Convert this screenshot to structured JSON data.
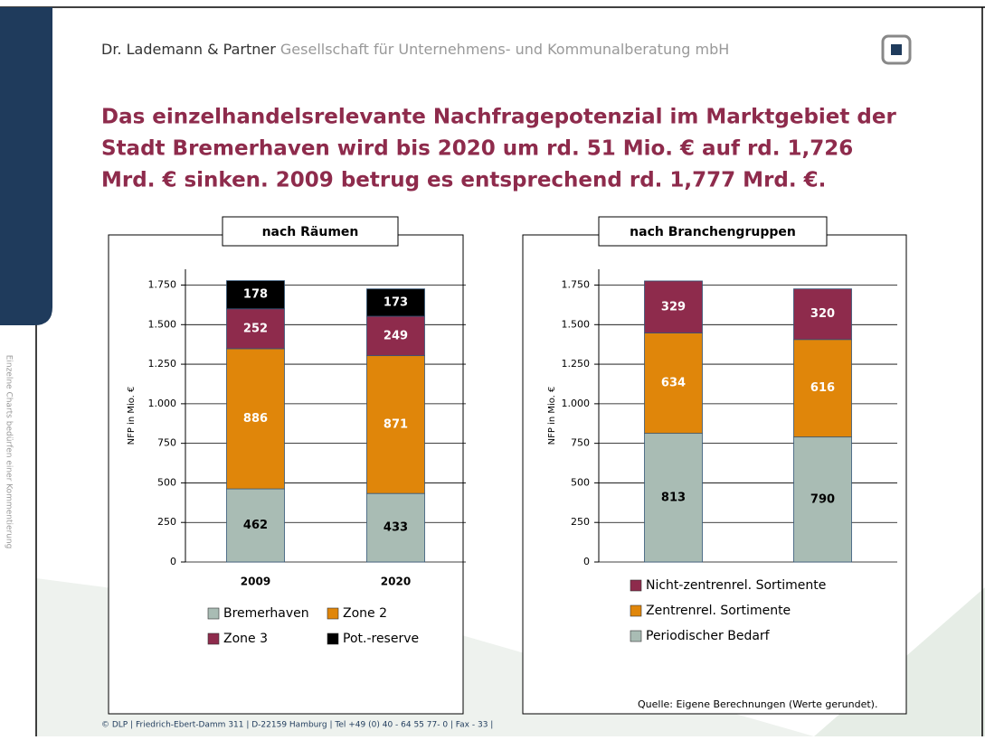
{
  "header": {
    "firm": "Dr. Lademann & Partner",
    "company": "Gesellschaft für Unternehmens- und Kommunalberatung mbH"
  },
  "title": [
    "Das einzelhandelsrelevante Nachfragepotenzial im Marktgebiet der",
    "Stadt Bremerhaven wird bis 2020 um rd. 51 Mio. € auf rd. 1,726",
    "Mrd. € sinken. 2009 betrug es entsprechend rd. 1,777 Mrd. €."
  ],
  "sidebar_note": "Einzelne Charts bedürfen einer Kommentierung",
  "chart_data": [
    {
      "type": "bar",
      "title": "nach Räumen",
      "ylabel": "NFP in Mio. €",
      "stacked": true,
      "grid": true,
      "categories": [
        "2009",
        "2020"
      ],
      "series": [
        {
          "name": "Bremerhaven",
          "color": "#a9bcb4",
          "values": [
            462,
            433
          ]
        },
        {
          "name": "Zone 2",
          "color": "#e0860a",
          "values": [
            886,
            871
          ]
        },
        {
          "name": "Zone 3",
          "color": "#8e2b4c",
          "values": [
            252,
            249
          ]
        },
        {
          "name": "Pot.-reserve",
          "color": "#000000",
          "values": [
            178,
            173
          ]
        }
      ],
      "ylim": [
        0,
        1850
      ],
      "yticks": [
        0,
        250,
        500,
        750,
        {
          "value": 1000,
          "label": "1.000"
        },
        {
          "value": 1250,
          "label": "1.250"
        },
        {
          "value": 1500,
          "label": "1.500"
        },
        {
          "value": 1750,
          "label": "1.750"
        }
      ]
    },
    {
      "type": "bar",
      "title": "nach Branchengruppen",
      "ylabel": "NFP in Mio. €",
      "stacked": true,
      "grid": true,
      "categories": [
        null,
        null
      ],
      "series": [
        {
          "name": "Periodischer Bedarf",
          "color": "#a9bcb4",
          "values": [
            813,
            790
          ]
        },
        {
          "name": "Zentrenrel. Sortimente",
          "color": "#e0860a",
          "values": [
            634,
            616
          ]
        },
        {
          "name": "Nicht-zentrenrel. Sortimente",
          "color": "#8e2b4c",
          "values": [
            329,
            320
          ]
        }
      ],
      "ylim": [
        0,
        1850
      ],
      "yticks": [
        0,
        250,
        500,
        750,
        {
          "value": 1000,
          "label": "1.000"
        },
        {
          "value": 1250,
          "label": "1.250"
        },
        {
          "value": 1500,
          "label": "1.500"
        },
        {
          "value": 1750,
          "label": "1.750"
        }
      ]
    }
  ],
  "source": "Quelle: Eigene Berechnungen (Werte gerundet).",
  "footer": "© DLP | Friedrich-Ebert-Damm 311 | D-22159 Hamburg | Tel +49 (0) 40 - 64 55 77- 0 | Fax  - 33 |"
}
